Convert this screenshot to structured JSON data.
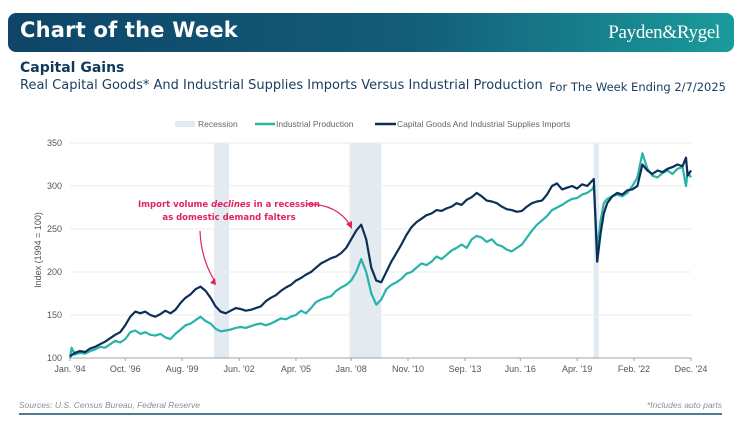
{
  "header": {
    "title": "Chart of the Week",
    "brand": "Payden&Rygel"
  },
  "subtitle": {
    "main": "Capital Gains",
    "sub": "Real Capital Goods* And Industrial Supplies Imports Versus Industrial Production",
    "week_ending": "For The Week Ending 2/7/2025"
  },
  "footer": {
    "sources": "Sources: U.S. Census Bureau, Federal Reserve",
    "note": "*Includes auto parts"
  },
  "colors": {
    "header_dark": "#0e4568",
    "header_light": "#1a9b9b",
    "imports": "#0d2f57",
    "industrial_production": "#27b3a8",
    "recession": "#e3eaf0",
    "annotation": "#e0245e"
  },
  "chart_data": {
    "type": "line",
    "title": "",
    "xlabel": "",
    "ylabel": "Index (1994 = 100)",
    "ylim": [
      100,
      350
    ],
    "yticks": [
      100,
      150,
      200,
      250,
      300,
      350
    ],
    "xlim": [
      1994.0,
      2024.92
    ],
    "xticks": [
      {
        "x": 1994.0,
        "label": "Jan. '94"
      },
      {
        "x": 1996.75,
        "label": "Oct. '96"
      },
      {
        "x": 1999.58,
        "label": "Aug. '99"
      },
      {
        "x": 2002.42,
        "label": "Jun. '02"
      },
      {
        "x": 2005.25,
        "label": "Apr. '05"
      },
      {
        "x": 2008.0,
        "label": "Jan. '08"
      },
      {
        "x": 2010.83,
        "label": "Nov. '10"
      },
      {
        "x": 2013.67,
        "label": "Sep. '13"
      },
      {
        "x": 2016.42,
        "label": "Jun. '16"
      },
      {
        "x": 2019.25,
        "label": "Apr. '19"
      },
      {
        "x": 2022.08,
        "label": "Feb. '22"
      },
      {
        "x": 2024.92,
        "label": "Dec. '24"
      }
    ],
    "grid": true,
    "legend_position": "top-center",
    "legend": [
      "Recession",
      "Industrial Production",
      "Capital Goods And Industrial Supplies Imports"
    ],
    "recessions": [
      {
        "start": 2001.17,
        "end": 2001.92
      },
      {
        "start": 2007.92,
        "end": 2009.5
      },
      {
        "start": 2020.08,
        "end": 2020.33
      }
    ],
    "annotation": {
      "line1_before": "Import volume ",
      "line1_emph": "declines",
      "line1_after": " in a recession",
      "line2": "as domestic demand falters"
    },
    "series": [
      {
        "name": "Capital Goods And Industrial Supplies Imports",
        "x": [
          1994.0,
          1994.25,
          1994.5,
          1994.75,
          1995.0,
          1995.25,
          1995.5,
          1995.75,
          1996.0,
          1996.25,
          1996.5,
          1996.75,
          1997.0,
          1997.25,
          1997.5,
          1997.75,
          1998.0,
          1998.25,
          1998.5,
          1998.75,
          1999.0,
          1999.25,
          1999.5,
          1999.75,
          2000.0,
          2000.25,
          2000.5,
          2000.75,
          2001.0,
          2001.25,
          2001.5,
          2001.75,
          2002.0,
          2002.25,
          2002.5,
          2002.75,
          2003.0,
          2003.25,
          2003.5,
          2003.75,
          2004.0,
          2004.25,
          2004.5,
          2004.75,
          2005.0,
          2005.25,
          2005.5,
          2005.75,
          2006.0,
          2006.25,
          2006.5,
          2006.75,
          2007.0,
          2007.25,
          2007.5,
          2007.75,
          2008.0,
          2008.25,
          2008.5,
          2008.75,
          2009.0,
          2009.25,
          2009.5,
          2009.75,
          2010.0,
          2010.25,
          2010.5,
          2010.75,
          2011.0,
          2011.25,
          2011.5,
          2011.75,
          2012.0,
          2012.25,
          2012.5,
          2012.75,
          2013.0,
          2013.25,
          2013.5,
          2013.75,
          2014.0,
          2014.25,
          2014.5,
          2014.75,
          2015.0,
          2015.25,
          2015.5,
          2015.75,
          2016.0,
          2016.25,
          2016.5,
          2016.75,
          2017.0,
          2017.25,
          2017.5,
          2017.75,
          2018.0,
          2018.25,
          2018.5,
          2018.75,
          2019.0,
          2019.25,
          2019.5,
          2019.75,
          2020.0,
          2020.08,
          2020.25,
          2020.42,
          2020.58,
          2020.75,
          2021.0,
          2021.25,
          2021.5,
          2021.75,
          2022.0,
          2022.25,
          2022.5,
          2022.75,
          2023.0,
          2023.25,
          2023.5,
          2023.75,
          2024.0,
          2024.25,
          2024.5,
          2024.67,
          2024.75,
          2024.92
        ],
        "values": [
          102,
          106,
          108,
          107,
          111,
          113,
          116,
          119,
          123,
          127,
          130,
          138,
          148,
          154,
          152,
          154,
          150,
          148,
          151,
          155,
          152,
          156,
          164,
          170,
          174,
          180,
          183,
          178,
          170,
          160,
          154,
          152,
          155,
          158,
          157,
          155,
          156,
          158,
          160,
          166,
          170,
          173,
          178,
          182,
          185,
          190,
          193,
          197,
          200,
          205,
          210,
          213,
          216,
          218,
          222,
          228,
          238,
          248,
          255,
          238,
          205,
          190,
          188,
          200,
          212,
          222,
          232,
          243,
          252,
          258,
          262,
          266,
          268,
          272,
          271,
          274,
          276,
          280,
          278,
          284,
          287,
          292,
          288,
          283,
          282,
          280,
          276,
          273,
          272,
          270,
          271,
          276,
          280,
          282,
          283,
          290,
          300,
          303,
          296,
          298,
          300,
          297,
          302,
          300,
          306,
          308,
          212,
          245,
          268,
          280,
          288,
          292,
          290,
          295,
          296,
          300,
          325,
          318,
          314,
          318,
          316,
          320,
          322,
          325,
          323,
          333,
          312,
          318
        ]
      },
      {
        "name": "Industrial Production",
        "x": [
          1994.0,
          1994.08,
          1994.25,
          1994.5,
          1994.75,
          1995.0,
          1995.25,
          1995.5,
          1995.75,
          1996.0,
          1996.25,
          1996.5,
          1996.75,
          1997.0,
          1997.25,
          1997.5,
          1997.75,
          1998.0,
          1998.25,
          1998.5,
          1998.75,
          1999.0,
          1999.25,
          1999.5,
          1999.75,
          2000.0,
          2000.25,
          2000.5,
          2000.75,
          2001.0,
          2001.25,
          2001.5,
          2001.75,
          2002.0,
          2002.25,
          2002.5,
          2002.75,
          2003.0,
          2003.25,
          2003.5,
          2003.75,
          2004.0,
          2004.25,
          2004.5,
          2004.75,
          2005.0,
          2005.25,
          2005.5,
          2005.75,
          2006.0,
          2006.25,
          2006.5,
          2006.75,
          2007.0,
          2007.25,
          2007.5,
          2007.75,
          2008.0,
          2008.25,
          2008.5,
          2008.75,
          2009.0,
          2009.25,
          2009.5,
          2009.75,
          2010.0,
          2010.25,
          2010.5,
          2010.75,
          2011.0,
          2011.25,
          2011.5,
          2011.75,
          2012.0,
          2012.25,
          2012.5,
          2012.75,
          2013.0,
          2013.25,
          2013.5,
          2013.75,
          2014.0,
          2014.25,
          2014.5,
          2014.75,
          2015.0,
          2015.25,
          2015.5,
          2015.75,
          2016.0,
          2016.25,
          2016.5,
          2016.75,
          2017.0,
          2017.25,
          2017.5,
          2017.75,
          2018.0,
          2018.25,
          2018.5,
          2018.75,
          2019.0,
          2019.25,
          2019.5,
          2019.75,
          2020.0,
          2020.08,
          2020.25,
          2020.42,
          2020.58,
          2020.75,
          2021.0,
          2021.25,
          2021.5,
          2021.75,
          2022.0,
          2022.25,
          2022.5,
          2022.75,
          2023.0,
          2023.25,
          2023.5,
          2023.75,
          2024.0,
          2024.25,
          2024.5,
          2024.67,
          2024.75,
          2024.92
        ],
        "values": [
          100,
          112,
          104,
          106,
          105,
          108,
          110,
          113,
          112,
          116,
          120,
          118,
          122,
          130,
          132,
          128,
          130,
          127,
          126,
          128,
          124,
          122,
          128,
          133,
          138,
          140,
          144,
          148,
          143,
          140,
          134,
          131,
          132,
          133,
          135,
          136,
          135,
          137,
          139,
          140,
          138,
          140,
          143,
          146,
          145,
          148,
          150,
          155,
          152,
          158,
          165,
          168,
          170,
          172,
          178,
          182,
          185,
          190,
          200,
          215,
          200,
          175,
          162,
          168,
          180,
          185,
          188,
          192,
          198,
          200,
          205,
          210,
          208,
          212,
          218,
          215,
          220,
          225,
          228,
          232,
          228,
          238,
          242,
          240,
          235,
          238,
          232,
          230,
          226,
          224,
          228,
          232,
          240,
          248,
          255,
          260,
          265,
          272,
          275,
          278,
          282,
          285,
          286,
          290,
          292,
          296,
          300,
          225,
          260,
          280,
          285,
          288,
          290,
          288,
          292,
          300,
          310,
          338,
          320,
          312,
          310,
          315,
          318,
          314,
          320,
          322,
          300,
          316,
          310
        ]
      }
    ]
  }
}
